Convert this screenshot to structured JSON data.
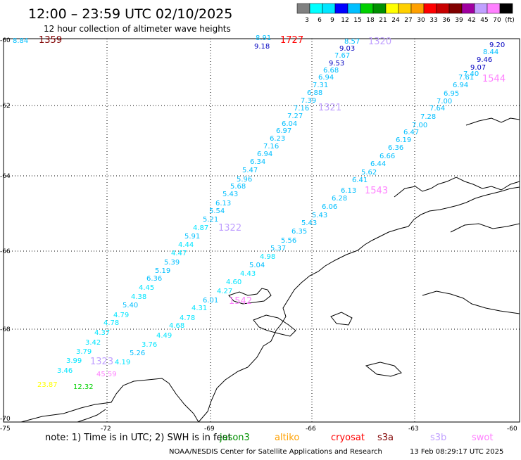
{
  "header": {
    "title": "12:00 – 23:59 UTC 02/10/2025",
    "subtitle": "12 hour collection of altimeter wave heights"
  },
  "colorbar": {
    "colors": [
      "#808080",
      "#00ffff",
      "#00e5ff",
      "#0000ff",
      "#00bfff",
      "#00d000",
      "#009000",
      "#ffff00",
      "#ffd000",
      "#ffa000",
      "#ff0000",
      "#c80000",
      "#800000",
      "#a000a0",
      "#c0a0ff",
      "#ff80ff",
      "#000000"
    ],
    "labels": [
      "3",
      "6",
      "9",
      "12",
      "15",
      "18",
      "21",
      "24",
      "27",
      "30",
      "33",
      "36",
      "39",
      "42",
      "45",
      "70",
      "(ft)"
    ]
  },
  "map": {
    "y_ticks": [
      "-60",
      "-62",
      "-64",
      "-66",
      "-68",
      "-70"
    ],
    "x_ticks": [
      "-75",
      "-72",
      "-69",
      "-66",
      "-63",
      "-60"
    ]
  },
  "track_labels": [
    {
      "text": "1359",
      "color": "#800000"
    },
    {
      "text": "1727",
      "color": "#ff0000"
    },
    {
      "text": "1320",
      "color": "#c0a0ff"
    },
    {
      "text": "1321",
      "color": "#c0a0ff"
    },
    {
      "text": "1544",
      "color": "#ff80ff"
    },
    {
      "text": "1543",
      "color": "#ff80ff"
    },
    {
      "text": "1322",
      "color": "#c0a0ff"
    },
    {
      "text": "1542",
      "color": "#ff80ff"
    },
    {
      "text": "1323",
      "color": "#c0a0ff"
    }
  ],
  "measurements": [
    {
      "text": "8.84",
      "color": "#00bfff"
    },
    {
      "text": "8.91",
      "color": "#00bfff"
    },
    {
      "text": "9.18",
      "color": "#0000c0"
    },
    {
      "text": "8.57",
      "color": "#00bfff"
    },
    {
      "text": "9.03",
      "color": "#0000c0"
    },
    {
      "text": "7.67",
      "color": "#00bfff"
    },
    {
      "text": "9.53",
      "color": "#0000c0"
    },
    {
      "text": "6.68",
      "color": "#00bfff"
    },
    {
      "text": "6.94",
      "color": "#00bfff"
    },
    {
      "text": "7.31",
      "color": "#00bfff"
    },
    {
      "text": "6.88",
      "color": "#00bfff"
    },
    {
      "text": "7.39",
      "color": "#00bfff"
    },
    {
      "text": "7.16",
      "color": "#00bfff"
    },
    {
      "text": "7.27",
      "color": "#00bfff"
    },
    {
      "text": "6.04",
      "color": "#00bfff"
    },
    {
      "text": "6.97",
      "color": "#00bfff"
    },
    {
      "text": "6.23",
      "color": "#00bfff"
    },
    {
      "text": "7.16",
      "color": "#00bfff"
    },
    {
      "text": "6.94",
      "color": "#00bfff"
    },
    {
      "text": "6.34",
      "color": "#00bfff"
    },
    {
      "text": "5.47",
      "color": "#00bfff"
    },
    {
      "text": "5.96",
      "color": "#00bfff"
    },
    {
      "text": "5.68",
      "color": "#00bfff"
    },
    {
      "text": "5.43",
      "color": "#00bfff"
    },
    {
      "text": "6.13",
      "color": "#00bfff"
    },
    {
      "text": "5.54",
      "color": "#00bfff"
    },
    {
      "text": "5.21",
      "color": "#00bfff"
    },
    {
      "text": "4.87",
      "color": "#00e5ff"
    },
    {
      "text": "5.91",
      "color": "#00bfff"
    },
    {
      "text": "4.44",
      "color": "#00e5ff"
    },
    {
      "text": "4.47",
      "color": "#00e5ff"
    },
    {
      "text": "5.39",
      "color": "#00bfff"
    },
    {
      "text": "5.19",
      "color": "#00bfff"
    },
    {
      "text": "6.36",
      "color": "#00bfff"
    },
    {
      "text": "4.45",
      "color": "#00e5ff"
    },
    {
      "text": "4.38",
      "color": "#00e5ff"
    },
    {
      "text": "5.40",
      "color": "#00bfff"
    },
    {
      "text": "4.79",
      "color": "#00e5ff"
    },
    {
      "text": "4.78",
      "color": "#00e5ff"
    },
    {
      "text": "4.37",
      "color": "#00e5ff"
    },
    {
      "text": "3.42",
      "color": "#00e5ff"
    },
    {
      "text": "3.79",
      "color": "#00e5ff"
    },
    {
      "text": "3.99",
      "color": "#00e5ff"
    },
    {
      "text": "3.46",
      "color": "#00e5ff"
    },
    {
      "text": "9.20",
      "color": "#0000c0"
    },
    {
      "text": "8.44",
      "color": "#00bfff"
    },
    {
      "text": "9.46",
      "color": "#0000c0"
    },
    {
      "text": "9.07",
      "color": "#0000c0"
    },
    {
      "text": "7.61",
      "color": "#00bfff"
    },
    {
      "text": "7.40",
      "color": "#00bfff"
    },
    {
      "text": "6.94",
      "color": "#00bfff"
    },
    {
      "text": "6.95",
      "color": "#00bfff"
    },
    {
      "text": "7.00",
      "color": "#00bfff"
    },
    {
      "text": "7.64",
      "color": "#00bfff"
    },
    {
      "text": "7.28",
      "color": "#00bfff"
    },
    {
      "text": "7.00",
      "color": "#00bfff"
    },
    {
      "text": "6.47",
      "color": "#00bfff"
    },
    {
      "text": "6.19",
      "color": "#00bfff"
    },
    {
      "text": "6.36",
      "color": "#00bfff"
    },
    {
      "text": "6.66",
      "color": "#00bfff"
    },
    {
      "text": "6.44",
      "color": "#00bfff"
    },
    {
      "text": "5.62",
      "color": "#00bfff"
    },
    {
      "text": "6.41",
      "color": "#00bfff"
    },
    {
      "text": "6.13",
      "color": "#00bfff"
    },
    {
      "text": "6.28",
      "color": "#00bfff"
    },
    {
      "text": "6.06",
      "color": "#00bfff"
    },
    {
      "text": "5.43",
      "color": "#00bfff"
    },
    {
      "text": "5.43",
      "color": "#00bfff"
    },
    {
      "text": "6.35",
      "color": "#00bfff"
    },
    {
      "text": "5.56",
      "color": "#00bfff"
    },
    {
      "text": "5.37",
      "color": "#00bfff"
    },
    {
      "text": "4.98",
      "color": "#00e5ff"
    },
    {
      "text": "5.04",
      "color": "#00bfff"
    },
    {
      "text": "4.43",
      "color": "#00e5ff"
    },
    {
      "text": "4.60",
      "color": "#00e5ff"
    },
    {
      "text": "4.27",
      "color": "#00e5ff"
    },
    {
      "text": "6.01",
      "color": "#00bfff"
    },
    {
      "text": "4.31",
      "color": "#00e5ff"
    },
    {
      "text": "4.78",
      "color": "#00e5ff"
    },
    {
      "text": "4.68",
      "color": "#00e5ff"
    },
    {
      "text": "4.49",
      "color": "#00e5ff"
    },
    {
      "text": "3.76",
      "color": "#00e5ff"
    },
    {
      "text": "5.26",
      "color": "#00bfff"
    },
    {
      "text": "4.19",
      "color": "#00e5ff"
    },
    {
      "text": "45.59",
      "color": "#ff80ff"
    },
    {
      "text": "23.87",
      "color": "#ffff00"
    },
    {
      "text": "12.32",
      "color": "#00d000"
    }
  ],
  "footer": {
    "note": "note:  1) Time is in UTC; 2) SWH is in feet",
    "satellites": [
      {
        "name": "jason3",
        "color": "#009000"
      },
      {
        "name": "altiko",
        "color": "#ffa000"
      },
      {
        "name": "cryosat",
        "color": "#ff0000"
      },
      {
        "name": "s3a",
        "color": "#800000"
      },
      {
        "name": "s3b",
        "color": "#c0a0ff"
      },
      {
        "name": "swot",
        "color": "#ff80ff"
      }
    ],
    "credit": "NOAA/NESDIS Center for Satellite Applications and Research",
    "timestamp": "13 Feb 08:29:17 UTC 2025"
  }
}
